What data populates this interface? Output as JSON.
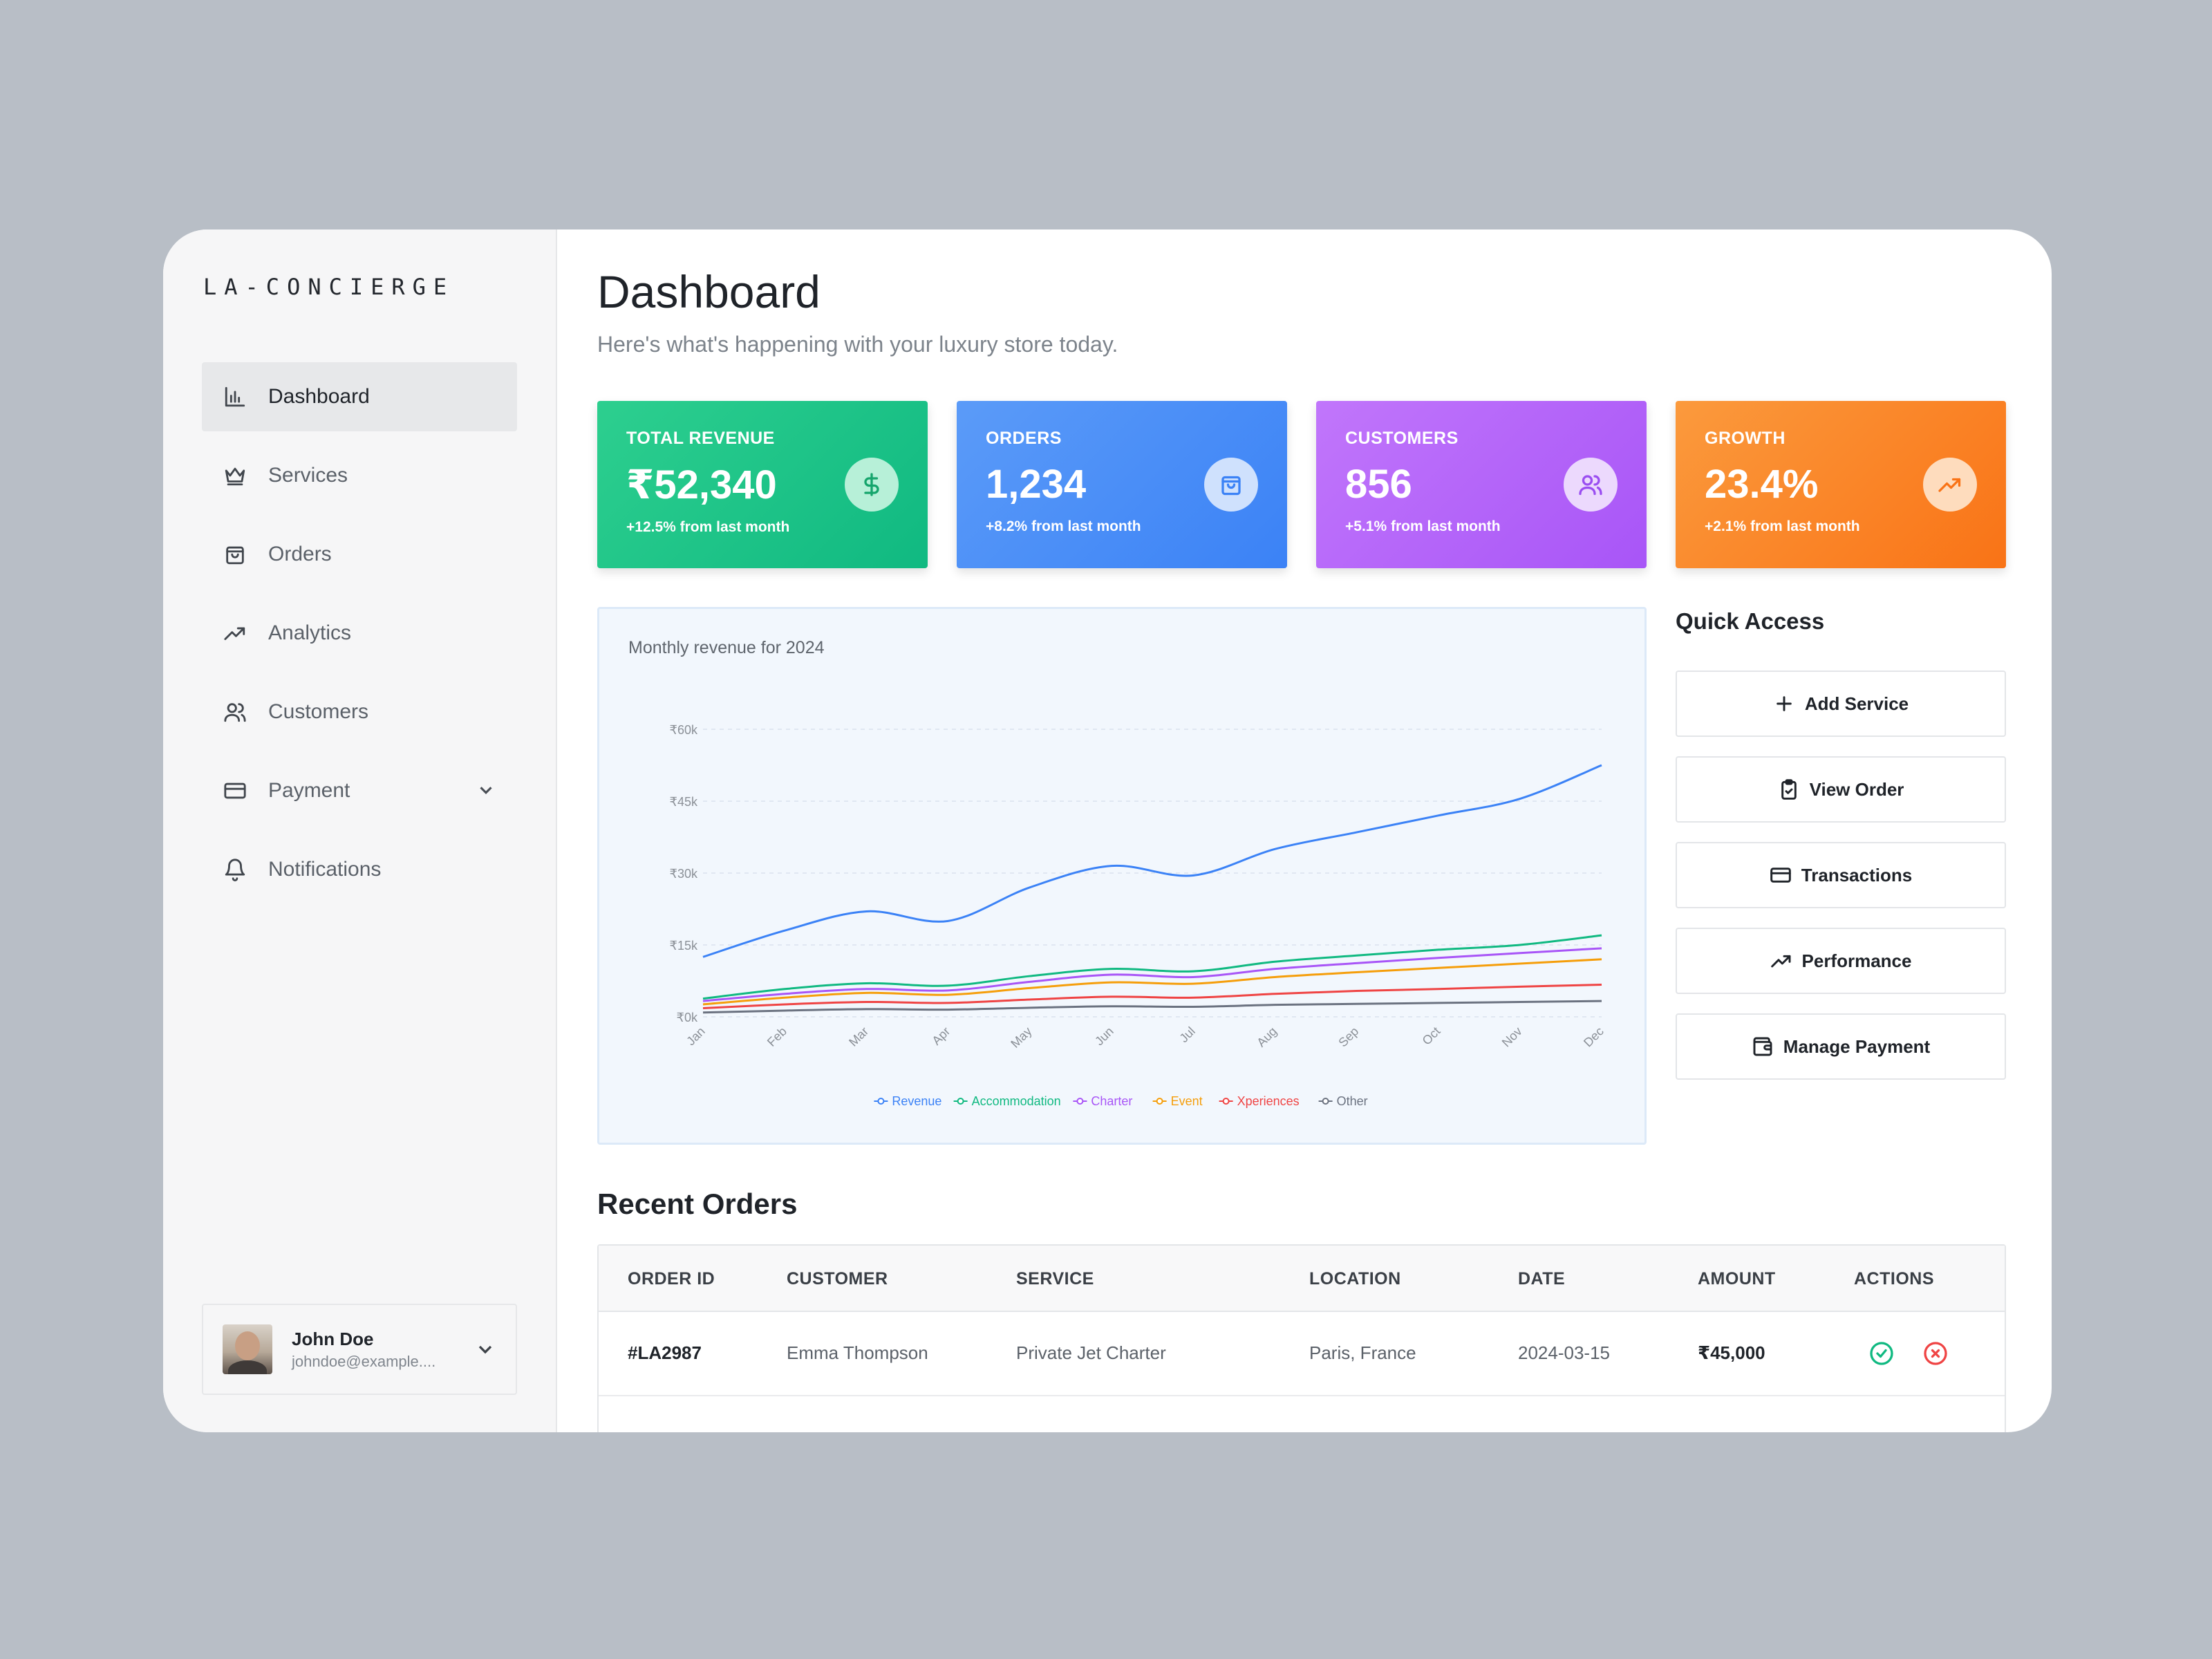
{
  "brand": "LA-CONCIERGE",
  "sidebar": {
    "items": [
      {
        "label": "Dashboard",
        "icon": "bar-chart-icon"
      },
      {
        "label": "Services",
        "icon": "crown-icon"
      },
      {
        "label": "Orders",
        "icon": "shopping-bag-icon"
      },
      {
        "label": "Analytics",
        "icon": "trending-up-icon"
      },
      {
        "label": "Customers",
        "icon": "users-icon"
      },
      {
        "label": "Payment",
        "icon": "credit-card-icon"
      },
      {
        "label": "Notifications",
        "icon": "bell-icon"
      }
    ],
    "active": "Dashboard"
  },
  "user": {
    "name": "John Doe",
    "email": "johndoe@example...."
  },
  "header": {
    "title": "Dashboard",
    "subtitle": "Here's what's happening with your luxury store today."
  },
  "stats": [
    {
      "label": "TOTAL REVENUE",
      "value": "₹52,340",
      "change": "+12.5% from last month",
      "icon": "dollar-icon"
    },
    {
      "label": "ORDERS",
      "value": "1,234",
      "change": "+8.2% from last month",
      "icon": "shopping-bag-icon"
    },
    {
      "label": "CUSTOMERS",
      "value": "856",
      "change": "+5.1% from last month",
      "icon": "users-icon"
    },
    {
      "label": "GROWTH",
      "value": "23.4%",
      "change": "+2.1% from last month",
      "icon": "trending-up-icon"
    }
  ],
  "chart_data": {
    "type": "line",
    "title": "Monthly revenue for 2024",
    "x": [
      "Jan",
      "Feb",
      "Mar",
      "Apr",
      "May",
      "Jun",
      "Jul",
      "Aug",
      "Sep",
      "Oct",
      "Nov",
      "Dec"
    ],
    "y_ticks": [
      "₹0k",
      "₹15k",
      "₹30k",
      "₹45k",
      "₹60k"
    ],
    "ylim": [
      0,
      60000
    ],
    "grid": true,
    "legend": "bottom",
    "series": [
      {
        "name": "Revenue",
        "color": "#3b82f6",
        "values": [
          12500,
          18000,
          22000,
          20000,
          27000,
          31500,
          29500,
          35000,
          38500,
          42000,
          45500,
          52500
        ]
      },
      {
        "name": "Accommodation",
        "color": "#10b981",
        "values": [
          3800,
          5800,
          7000,
          6500,
          8500,
          10000,
          9500,
          11500,
          12800,
          14000,
          15000,
          17000
        ]
      },
      {
        "name": "Charter",
        "color": "#a855f7",
        "values": [
          3300,
          4800,
          5800,
          5500,
          7300,
          8800,
          8300,
          10000,
          11200,
          12300,
          13300,
          14300
        ]
      },
      {
        "name": "Event",
        "color": "#f59e0b",
        "values": [
          2600,
          4000,
          5000,
          4600,
          6000,
          7200,
          6900,
          8300,
          9300,
          10200,
          11100,
          12000
        ]
      },
      {
        "name": "Xperiences",
        "color": "#ef4444",
        "values": [
          1800,
          2600,
          3100,
          2900,
          3600,
          4200,
          4000,
          4800,
          5400,
          5800,
          6300,
          6700
        ]
      },
      {
        "name": "Other",
        "color": "#6b7280",
        "values": [
          900,
          1300,
          1600,
          1500,
          1900,
          2200,
          2100,
          2500,
          2700,
          2900,
          3100,
          3300
        ]
      }
    ]
  },
  "quick_access": {
    "title": "Quick Access",
    "buttons": [
      {
        "label": "Add Service",
        "icon": "plus-icon"
      },
      {
        "label": "View Order",
        "icon": "clipboard-check-icon"
      },
      {
        "label": "Transactions",
        "icon": "credit-card-icon"
      },
      {
        "label": "Performance",
        "icon": "trending-up-icon"
      },
      {
        "label": "Manage Payment",
        "icon": "wallet-icon"
      }
    ]
  },
  "recent_orders": {
    "title": "Recent Orders",
    "columns": [
      "ORDER ID",
      "CUSTOMER",
      "SERVICE",
      "LOCATION",
      "DATE",
      "AMOUNT",
      "ACTIONS"
    ],
    "rows": [
      {
        "id": "#LA2987",
        "customer": "Emma Thompson",
        "service": "Private Jet Charter",
        "location": "Paris, France",
        "date": "2024-03-15",
        "amount": "₹45,000"
      }
    ]
  },
  "colors": {
    "approve": "#10b981",
    "reject": "#ef4444"
  }
}
